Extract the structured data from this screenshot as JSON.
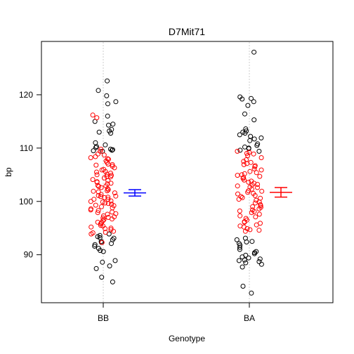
{
  "chart_data": {
    "type": "scatter",
    "title": "D7Mit71",
    "xlabel": "Genotype",
    "ylabel": "bp",
    "categories": [
      "BB",
      "BA"
    ],
    "yticks": [
      90,
      100,
      110,
      120
    ],
    "ylim": [
      81,
      130
    ],
    "colors": {
      "typed": "#ff0000",
      "untyped": "#000000",
      "BB_ci": "#0000ff",
      "BA_ci": "#ff0000",
      "guide": "#cccccc"
    },
    "summary": [
      {
        "group": "BB",
        "mean": 101.6,
        "lower": 101.0,
        "upper": 102.2
      },
      {
        "group": "BA",
        "mean": 101.7,
        "lower": 100.8,
        "upper": 102.6
      }
    ],
    "series": [
      {
        "name": "BB",
        "x": 1,
        "red": [
          104.9,
          98.3,
          108.7,
          96.7,
          99.6,
          101.9,
          105.6,
          94.1,
          107.0,
          100.9,
          97.0,
          103.6,
          109.4,
          95.8,
          102.6,
          106.3,
          99.0,
          93.9,
          105.0,
          100.4,
          97.6,
          108.2,
          103.0,
          96.1,
          101.3,
          106.8,
          94.7,
          99.9,
          104.4,
          98.0,
          107.6,
          102.2,
          95.2,
          100.7,
          105.9,
          97.3,
          103.3,
          108.9,
          96.4,
          101.6,
          99.3,
          106.0,
          94.4,
          102.9,
          98.6,
          104.7,
          107.3,
          95.5,
          100.1,
          103.9,
          97.9,
          105.3,
          101.0,
          96.9,
          108.4,
          99.7,
          102.4,
          106.6,
          94.9,
          100.4,
          104.1,
          97.1,
          116.2,
          115.7,
          92.3,
          95.0,
          101.8,
          98.8,
          105.5,
          103.4,
          109.8,
          96.0,
          100.0,
          102.8,
          107.9,
          99.5,
          104.6,
          97.7,
          94.2,
          106.9,
          101.1,
          98.4,
          103.7,
          96.6,
          105.1,
          100.8,
          108.0,
          95.4,
          102.0,
          99.2
        ],
        "black": [
          122.6,
          120.8,
          119.8,
          118.7,
          118.3,
          116.0,
          115.0,
          114.5,
          114.3,
          113.5,
          113.2,
          113.0,
          112.8,
          111.0,
          110.6,
          110.3,
          110.1,
          109.8,
          109.7,
          109.6,
          109.5,
          109.4,
          93.9,
          93.6,
          93.4,
          93.2,
          93.1,
          92.8,
          92.5,
          92.3,
          92.1,
          91.9,
          91.6,
          91.2,
          90.8,
          90.6,
          88.9,
          88.6,
          87.9,
          87.4,
          85.8,
          84.9
        ]
      },
      {
        "name": "BA",
        "x": 2,
        "red": [
          108.2,
          104.3,
          99.7,
          96.2,
          102.6,
          106.9,
          94.7,
          101.1,
          105.6,
          98.1,
          103.4,
          107.5,
          95.4,
          100.2,
          104.9,
          97.3,
          109.2,
          102.0,
          96.8,
          106.1,
          99.0,
          103.8,
          94.4,
          101.7,
          108.6,
          97.9,
          105.2,
          100.6,
          95.9,
          103.1,
          107.1,
          98.6,
          104.5,
          101.4,
          96.5,
          109.0,
          99.4,
          105.9,
          102.9,
          94.9,
          107.8,
          100.9,
          97.6,
          104.0,
          98.9,
          106.5,
          101.9,
          95.6,
          103.6,
          108.9,
          99.9,
          96.1,
          105.4,
          102.3,
          98.4,
          107.3,
          100.4,
          104.7,
          97.1,
          109.4,
          101.5,
          95.2,
          103.2,
          106.7,
          99.2,
          102.7,
          94.6,
          105.0,
          98.2,
          100.7
        ],
        "black": [
          128.0,
          119.6,
          119.3,
          119.2,
          118.7,
          118.0,
          116.4,
          115.3,
          113.6,
          113.2,
          113.0,
          112.8,
          112.5,
          112.2,
          111.9,
          111.7,
          111.4,
          110.8,
          110.5,
          110.2,
          110.0,
          109.9,
          109.6,
          109.4,
          93.1,
          92.8,
          92.5,
          92.4,
          92.1,
          91.8,
          91.4,
          91.0,
          90.6,
          90.4,
          90.2,
          89.9,
          89.6,
          89.4,
          89.2,
          89.0,
          88.9,
          88.7,
          88.5,
          88.2,
          87.7,
          84.1,
          82.8
        ]
      }
    ]
  }
}
